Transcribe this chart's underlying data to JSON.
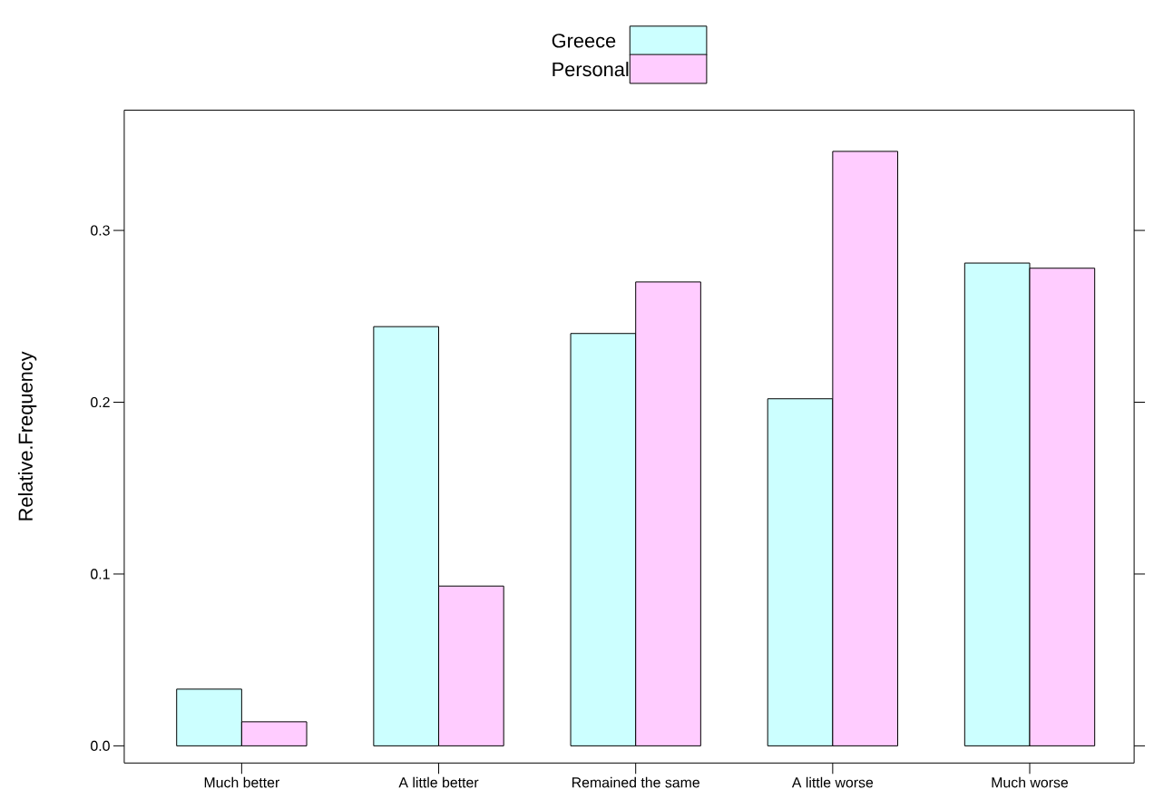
{
  "chart_data": {
    "type": "bar",
    "ylabel": "Relative.Frequency",
    "categories": [
      "Much better",
      "A little better",
      "Remained the same",
      "A little worse",
      "Much worse"
    ],
    "series": [
      {
        "name": "Greece",
        "color": "#ccffff",
        "values": [
          0.033,
          0.244,
          0.24,
          0.202,
          0.281
        ]
      },
      {
        "name": "Personal",
        "color": "#ffccff",
        "values": [
          0.014,
          0.093,
          0.27,
          0.346,
          0.278
        ]
      }
    ],
    "ylim": [
      -0.01,
      0.37
    ],
    "yticks": [
      {
        "value": 0,
        "label": "0.0"
      },
      0.1,
      0.2,
      0.3
    ],
    "legend": "top",
    "grid": false
  }
}
